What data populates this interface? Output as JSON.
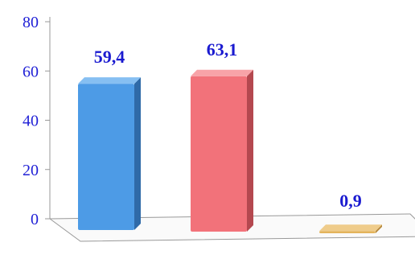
{
  "chart_data": {
    "type": "bar",
    "categories": [
      "",
      "",
      ""
    ],
    "values": [
      59.4,
      63.1,
      0.9
    ],
    "value_labels": [
      "59,4",
      "63,1",
      "0,9"
    ],
    "ylim": [
      0,
      80
    ],
    "yticks": [
      0,
      20,
      40,
      60,
      80
    ],
    "ytick_labels": [
      "0",
      "20",
      "40",
      "60",
      "80"
    ],
    "title": "",
    "xlabel": "",
    "ylabel": "",
    "grid": false,
    "style": "3d-column",
    "colors": {
      "bars": [
        "#4d9be6",
        "#f2727a",
        "#e3b45c"
      ],
      "bars_side": [
        "#2f6aa8",
        "#b4484f",
        "#b5873a"
      ],
      "bars_top": [
        "#86bff2",
        "#f8a3a8",
        "#efcc8b"
      ],
      "axis": "#999999",
      "tick_text": "#1f1fd6",
      "label_text": "#1a1ad0"
    }
  }
}
